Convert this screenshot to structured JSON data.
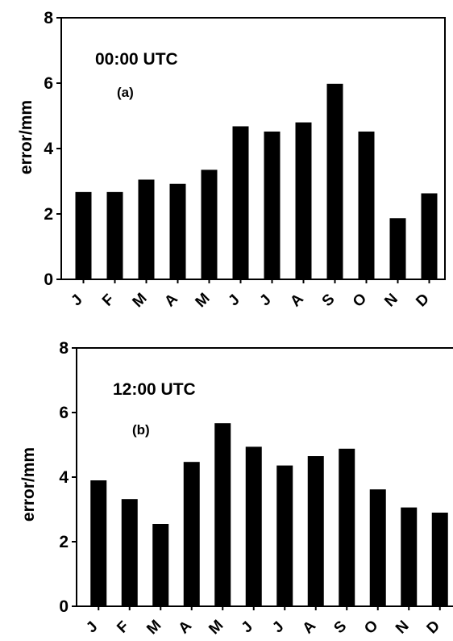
{
  "chart_data": [
    {
      "type": "bar",
      "annotation": "00:00 UTC",
      "panel_label": "(a)",
      "ylabel": "error/mm",
      "categories": [
        "J",
        "F",
        "M",
        "A",
        "M",
        "J",
        "J",
        "A",
        "S",
        "O",
        "N",
        "D"
      ],
      "values": [
        2.67,
        2.67,
        3.05,
        2.92,
        3.35,
        4.68,
        4.52,
        4.8,
        5.98,
        4.52,
        1.87,
        2.63
      ],
      "ylim": [
        0,
        8
      ],
      "yticks": [
        "0",
        "2",
        "4",
        "6",
        "8"
      ],
      "grid": false,
      "legend": "none",
      "bar_color": "#000000"
    },
    {
      "type": "bar",
      "annotation": "12:00 UTC",
      "panel_label": "(b)",
      "ylabel": "error/mm",
      "categories": [
        "J",
        "F",
        "M",
        "A",
        "M",
        "J",
        "J",
        "A",
        "S",
        "O",
        "N",
        "D"
      ],
      "values": [
        3.9,
        3.32,
        2.55,
        4.47,
        5.67,
        4.94,
        4.36,
        4.65,
        4.88,
        3.62,
        3.06,
        2.9
      ],
      "ylim": [
        0,
        8
      ],
      "yticks": [
        "0",
        "2",
        "4",
        "6",
        "8"
      ],
      "grid": false,
      "legend": "none",
      "bar_color": "#000000"
    }
  ]
}
